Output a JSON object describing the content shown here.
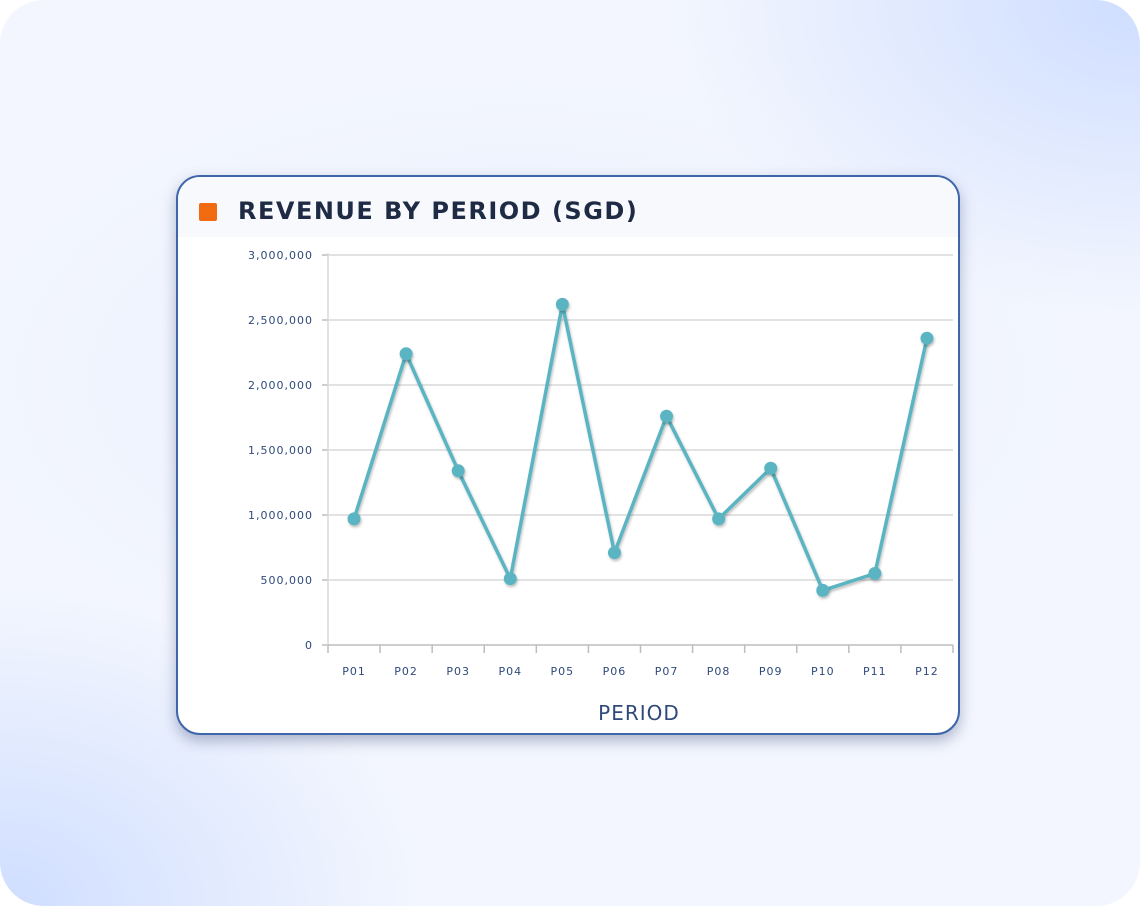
{
  "chart_data": {
    "type": "line",
    "title": "REVENUE BY PERIOD (SGD)",
    "xlabel": "PERIOD",
    "ylabel": "",
    "categories": [
      "P01",
      "P02",
      "P03",
      "P04",
      "P05",
      "P06",
      "P07",
      "P08",
      "P09",
      "P10",
      "P11",
      "P12"
    ],
    "series": [
      {
        "values": [
          970000,
          2240000,
          1340000,
          510000,
          2620000,
          710000,
          1760000,
          970000,
          1360000,
          420000,
          550000,
          2360000
        ]
      }
    ],
    "ylim": [
      0,
      3000000
    ],
    "yticks": [
      0,
      500000,
      1000000,
      1500000,
      2000000,
      2500000,
      3000000
    ],
    "ytick_labels": [
      "0",
      "500,000",
      "1,000,000",
      "1,500,000",
      "2,000,000",
      "2,500,000",
      "3,000,000"
    ],
    "grid": true,
    "legend": "top-left",
    "colors": {
      "series": "#5ab4c2",
      "legend_swatch": "#f26b10",
      "border": "#3f66aa",
      "text": "#2f4a7a"
    }
  }
}
